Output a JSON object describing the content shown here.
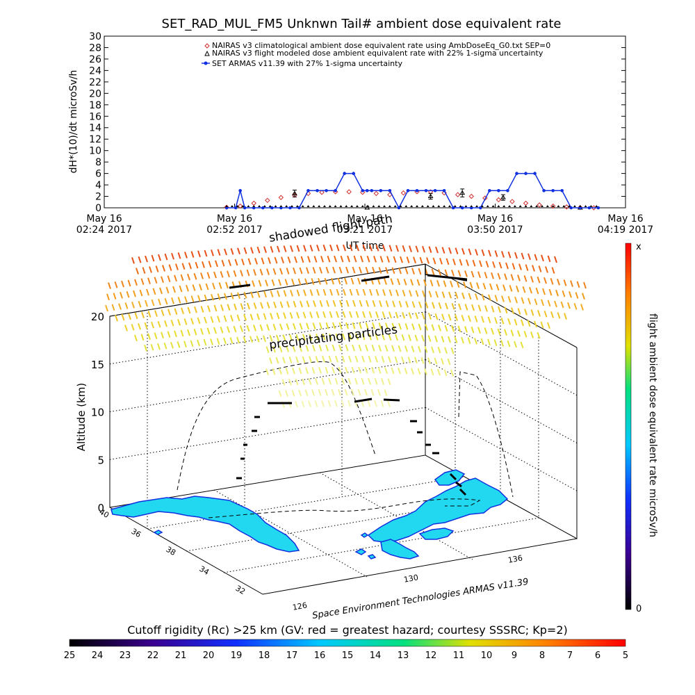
{
  "chart_data": [
    {
      "type": "line",
      "title": "SET_RAD_MUL_FM5 Unknwn Tail#  ambient dose equivalent rate",
      "ylabel": "dH*(10)/dt microSv/h",
      "xlabel": "UT time",
      "ylim": [
        0,
        30
      ],
      "yticks": [
        "0",
        "2",
        "4",
        "6",
        "8",
        "10",
        "12",
        "14",
        "16",
        "18",
        "20",
        "22",
        "24",
        "26",
        "28",
        "30"
      ],
      "xticks": [
        {
          "day": "May 16",
          "time": "02:24 2017"
        },
        {
          "day": "May 16",
          "time": "02:52 2017"
        },
        {
          "day": "May 16",
          "time": "03:21 2017"
        },
        {
          "day": "May 16",
          "time": "03:50 2017"
        },
        {
          "day": "May 16",
          "time": "04:19 2017"
        }
      ],
      "xlim_minutes_after_0224": [
        0,
        115
      ],
      "legend_position": "top",
      "series": [
        {
          "name": "NAIRAS v3 climatological ambient dose equivalent rate using AmbDoseEq_G0.txt SEP=0",
          "marker": "diamond",
          "color": "#d22a2a",
          "x": [
            27,
            30,
            33,
            36,
            39,
            42,
            45,
            48,
            51,
            54,
            57,
            60,
            63,
            66,
            69,
            72,
            75,
            78,
            81,
            84,
            87,
            90,
            93,
            96,
            99,
            102,
            105,
            108
          ],
          "y": [
            0.1,
            0.3,
            0.8,
            1.3,
            1.8,
            2.2,
            2.5,
            2.7,
            2.8,
            2.8,
            2.7,
            2.5,
            2.3,
            2.6,
            2.8,
            2.8,
            2.6,
            2.3,
            2.0,
            1.7,
            1.4,
            1.1,
            0.8,
            0.5,
            0.3,
            0.15,
            0.05,
            0
          ]
        },
        {
          "name": "NAIRAS v3 flight modeled dose ambient equivalent rate with 22% 1-sigma uncertainty",
          "marker": "triangle",
          "color": "#000000",
          "x": [
            42,
            58,
            72,
            79,
            88,
            105
          ],
          "y": [
            2.5,
            0,
            2.0,
            2.6,
            1.8,
            0
          ],
          "err": [
            0.6,
            0,
            0.5,
            0.7,
            0.5,
            0
          ]
        },
        {
          "name": "SET ARMAS v11.39 with 27% 1-sigma uncertainty",
          "marker": "filled-circle",
          "color": "#1030e0",
          "x": [
            27,
            29,
            30,
            31,
            33,
            35,
            37,
            39,
            41,
            43,
            45,
            47,
            49,
            51,
            53,
            55,
            57,
            58,
            59,
            61,
            63,
            65,
            67,
            69,
            71,
            73,
            75,
            77,
            79,
            81,
            83,
            85,
            87,
            89,
            91,
            93,
            95,
            97,
            99,
            101,
            103,
            105,
            107,
            109
          ],
          "y": [
            0,
            0,
            3,
            0,
            0,
            0,
            0,
            0,
            0,
            0,
            3,
            3,
            3,
            3,
            6,
            6,
            3,
            3,
            3,
            3,
            3,
            0,
            3,
            3,
            3,
            3,
            3,
            0,
            0,
            0,
            0,
            3,
            3,
            3,
            6,
            6,
            6,
            3,
            3,
            3,
            0,
            0,
            0,
            0
          ]
        }
      ]
    },
    {
      "type": "scatter",
      "title": "",
      "ylabel": "Altitude (km)",
      "zlim": [
        0,
        20
      ],
      "zticks": [
        "0",
        "5",
        "10",
        "15",
        "20"
      ],
      "lat_ticks": [
        "40",
        "36",
        "38",
        "34",
        "32"
      ],
      "lon_ticks": [
        "126",
        "130",
        "136"
      ],
      "annotations": [
        "shadowed flight path",
        "precipitating particles"
      ],
      "credit": "Space Environment Technologies ARMAS v11.39",
      "series": [
        {
          "name": "flight ambient dose equivalent rate microSv/h"
        }
      ]
    },
    {
      "type": "heatmap",
      "title": "flight ambient dose equivalent rate microSv/h",
      "colorbar_ticks": [
        "x",
        "0"
      ],
      "colors": [
        "#000000",
        "#3b0090",
        "#1030ff",
        "#00c8ff",
        "#00e080",
        "#e0e000",
        "#ff8000",
        "#ff0000"
      ]
    },
    {
      "type": "heatmap",
      "title": "Cutoff rigidity (Rc) >25 km (GV: red = greatest hazard; courtesy SSSRC; Kp=2)",
      "colorbar_ticks": [
        "25",
        "24",
        "23",
        "22",
        "21",
        "20",
        "19",
        "18",
        "17",
        "16",
        "15",
        "14",
        "13",
        "12",
        "11",
        "10",
        "9",
        "8",
        "7",
        "6",
        "5"
      ],
      "colors": [
        "#000000",
        "#3b0090",
        "#1030ff",
        "#00c8ff",
        "#00e080",
        "#e0e000",
        "#ff8000",
        "#ff0000"
      ]
    }
  ]
}
